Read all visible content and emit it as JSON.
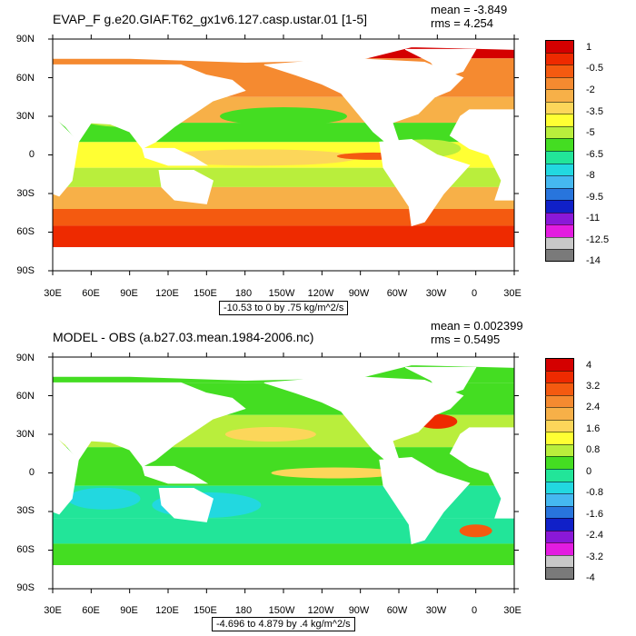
{
  "panels": [
    {
      "title": "EVAP_F g.e20.GIAF.T62_gx1v6.127.casp.ustar.01 [1-5]",
      "mean": "mean = -3.849",
      "rms": "rms = 4.254",
      "info": "-10.53 to 0 by .75 kg/m^2/s",
      "colorbar": {
        "labels": [
          "1",
          "-0.5",
          "-2",
          "-3.5",
          "-5",
          "-6.5",
          "-8",
          "-9.5",
          "-11",
          "-12.5",
          "-14"
        ],
        "colors": [
          "#d40000",
          "#ee2a00",
          "#f45a10",
          "#f58a30",
          "#f7b048",
          "#fcd65a",
          "#ffff33",
          "#b9ee3c",
          "#44dd22",
          "#22e599",
          "#22d8e0",
          "#45b8f0",
          "#2875dd",
          "#1020c8",
          "#8a18d8",
          "#e31ce0",
          "#c8c8c8",
          "#7a7a7a"
        ]
      }
    },
    {
      "title": "MODEL - OBS (a.b27.03.mean.1984-2006.nc)",
      "mean": "mean = 0.002399",
      "rms": "rms = 0.5495",
      "info": "-4.696 to 4.879 by .4 kg/m^2/s",
      "colorbar": {
        "labels": [
          "4",
          "3.2",
          "2.4",
          "1.6",
          "0.8",
          "0",
          "-0.8",
          "-1.6",
          "-2.4",
          "-3.2",
          "-4"
        ],
        "colors": [
          "#d40000",
          "#ee2a00",
          "#f45a10",
          "#f58a30",
          "#f7b048",
          "#fcd65a",
          "#ffff33",
          "#b9ee3c",
          "#44dd22",
          "#22e599",
          "#22d8e0",
          "#45b8f0",
          "#2875dd",
          "#1020c8",
          "#8a18d8",
          "#e31ce0",
          "#c8c8c8",
          "#7a7a7a"
        ]
      }
    }
  ],
  "axes": {
    "lat_labels": [
      "90N",
      "60N",
      "30N",
      "0",
      "30S",
      "60S",
      "90S"
    ],
    "lon_labels": [
      "30E",
      "60E",
      "90E",
      "120E",
      "150E",
      "180",
      "150W",
      "120W",
      "90W",
      "60W",
      "30W",
      "0",
      "30E"
    ]
  }
}
